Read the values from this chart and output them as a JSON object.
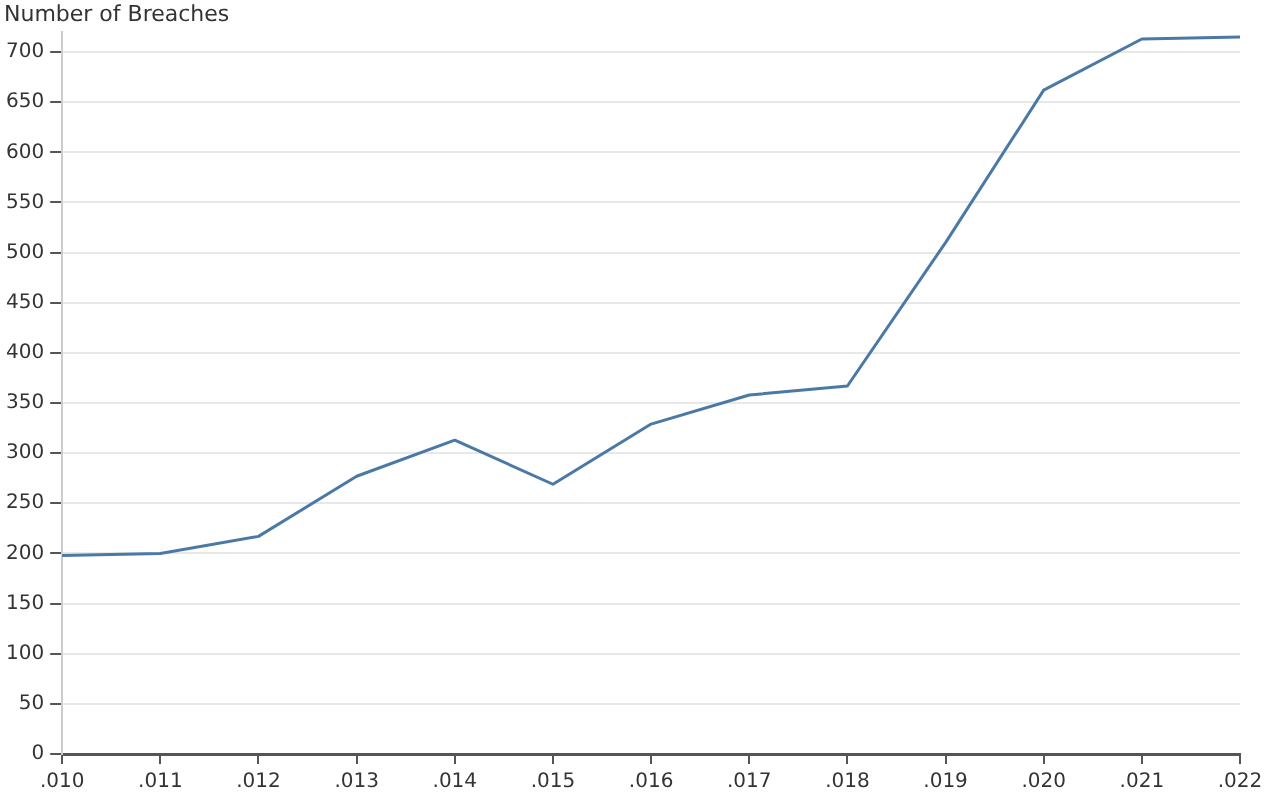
{
  "chart_data": {
    "type": "line",
    "ylabel": "Number of Breaches",
    "categories": [
      ".010",
      ".011",
      ".012",
      ".013",
      ".014",
      ".015",
      ".016",
      ".017",
      ".018",
      ".019",
      ".020",
      ".021",
      ".022"
    ],
    "series": [
      {
        "color": "#4a79a5",
        "values": [
          198,
          200,
          217,
          277,
          313,
          269,
          329,
          358,
          367,
          510,
          662,
          713,
          715
        ]
      }
    ],
    "ylim": [
      0,
      720
    ],
    "yticks": [
      0,
      50,
      100,
      150,
      200,
      250,
      300,
      350,
      400,
      450,
      500,
      550,
      600,
      650,
      700
    ],
    "grid": "y",
    "legend": false,
    "marker": "none",
    "line_style": "solid"
  }
}
